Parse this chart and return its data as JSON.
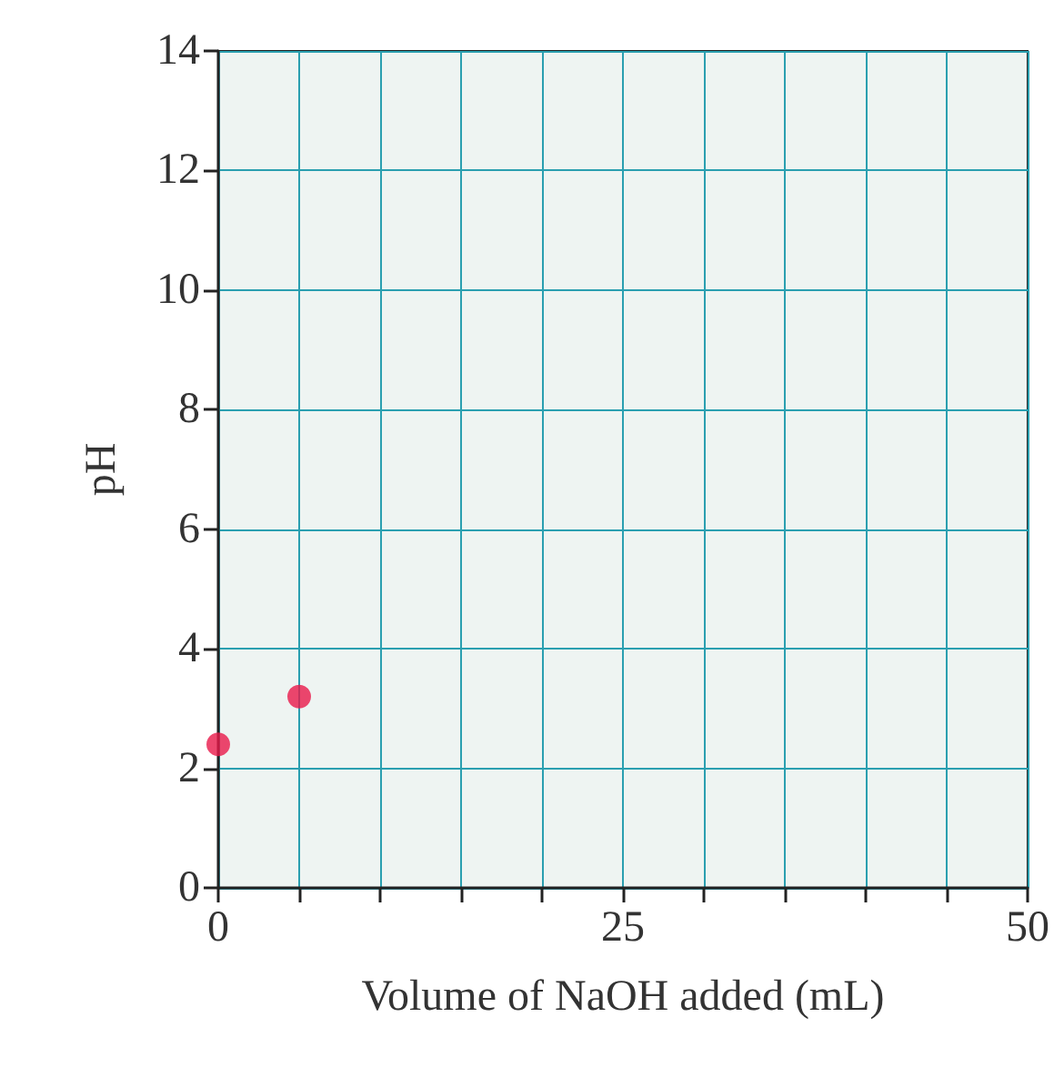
{
  "chart_data": {
    "type": "scatter",
    "xlabel": "Volume of NaOH added (mL)",
    "ylabel": "pH",
    "x": [
      0,
      5
    ],
    "series": [
      {
        "color": "#e8194a",
        "values": [
          2.4,
          3.2
        ]
      }
    ],
    "xlim": [
      0,
      50
    ],
    "xticks": [
      0,
      {
        "value": 5,
        "label": null
      },
      {
        "value": 10,
        "label": null
      },
      {
        "value": 15,
        "label": null
      },
      {
        "value": 20,
        "label": null
      },
      25,
      {
        "value": 30,
        "label": null
      },
      {
        "value": 35,
        "label": null
      },
      {
        "value": 40,
        "label": null
      },
      {
        "value": 45,
        "label": null
      },
      50
    ],
    "ylim": [
      0,
      14
    ],
    "yticks": [
      0,
      2,
      4,
      6,
      8,
      10,
      12,
      14
    ],
    "grid": true,
    "marker": "circle"
  }
}
